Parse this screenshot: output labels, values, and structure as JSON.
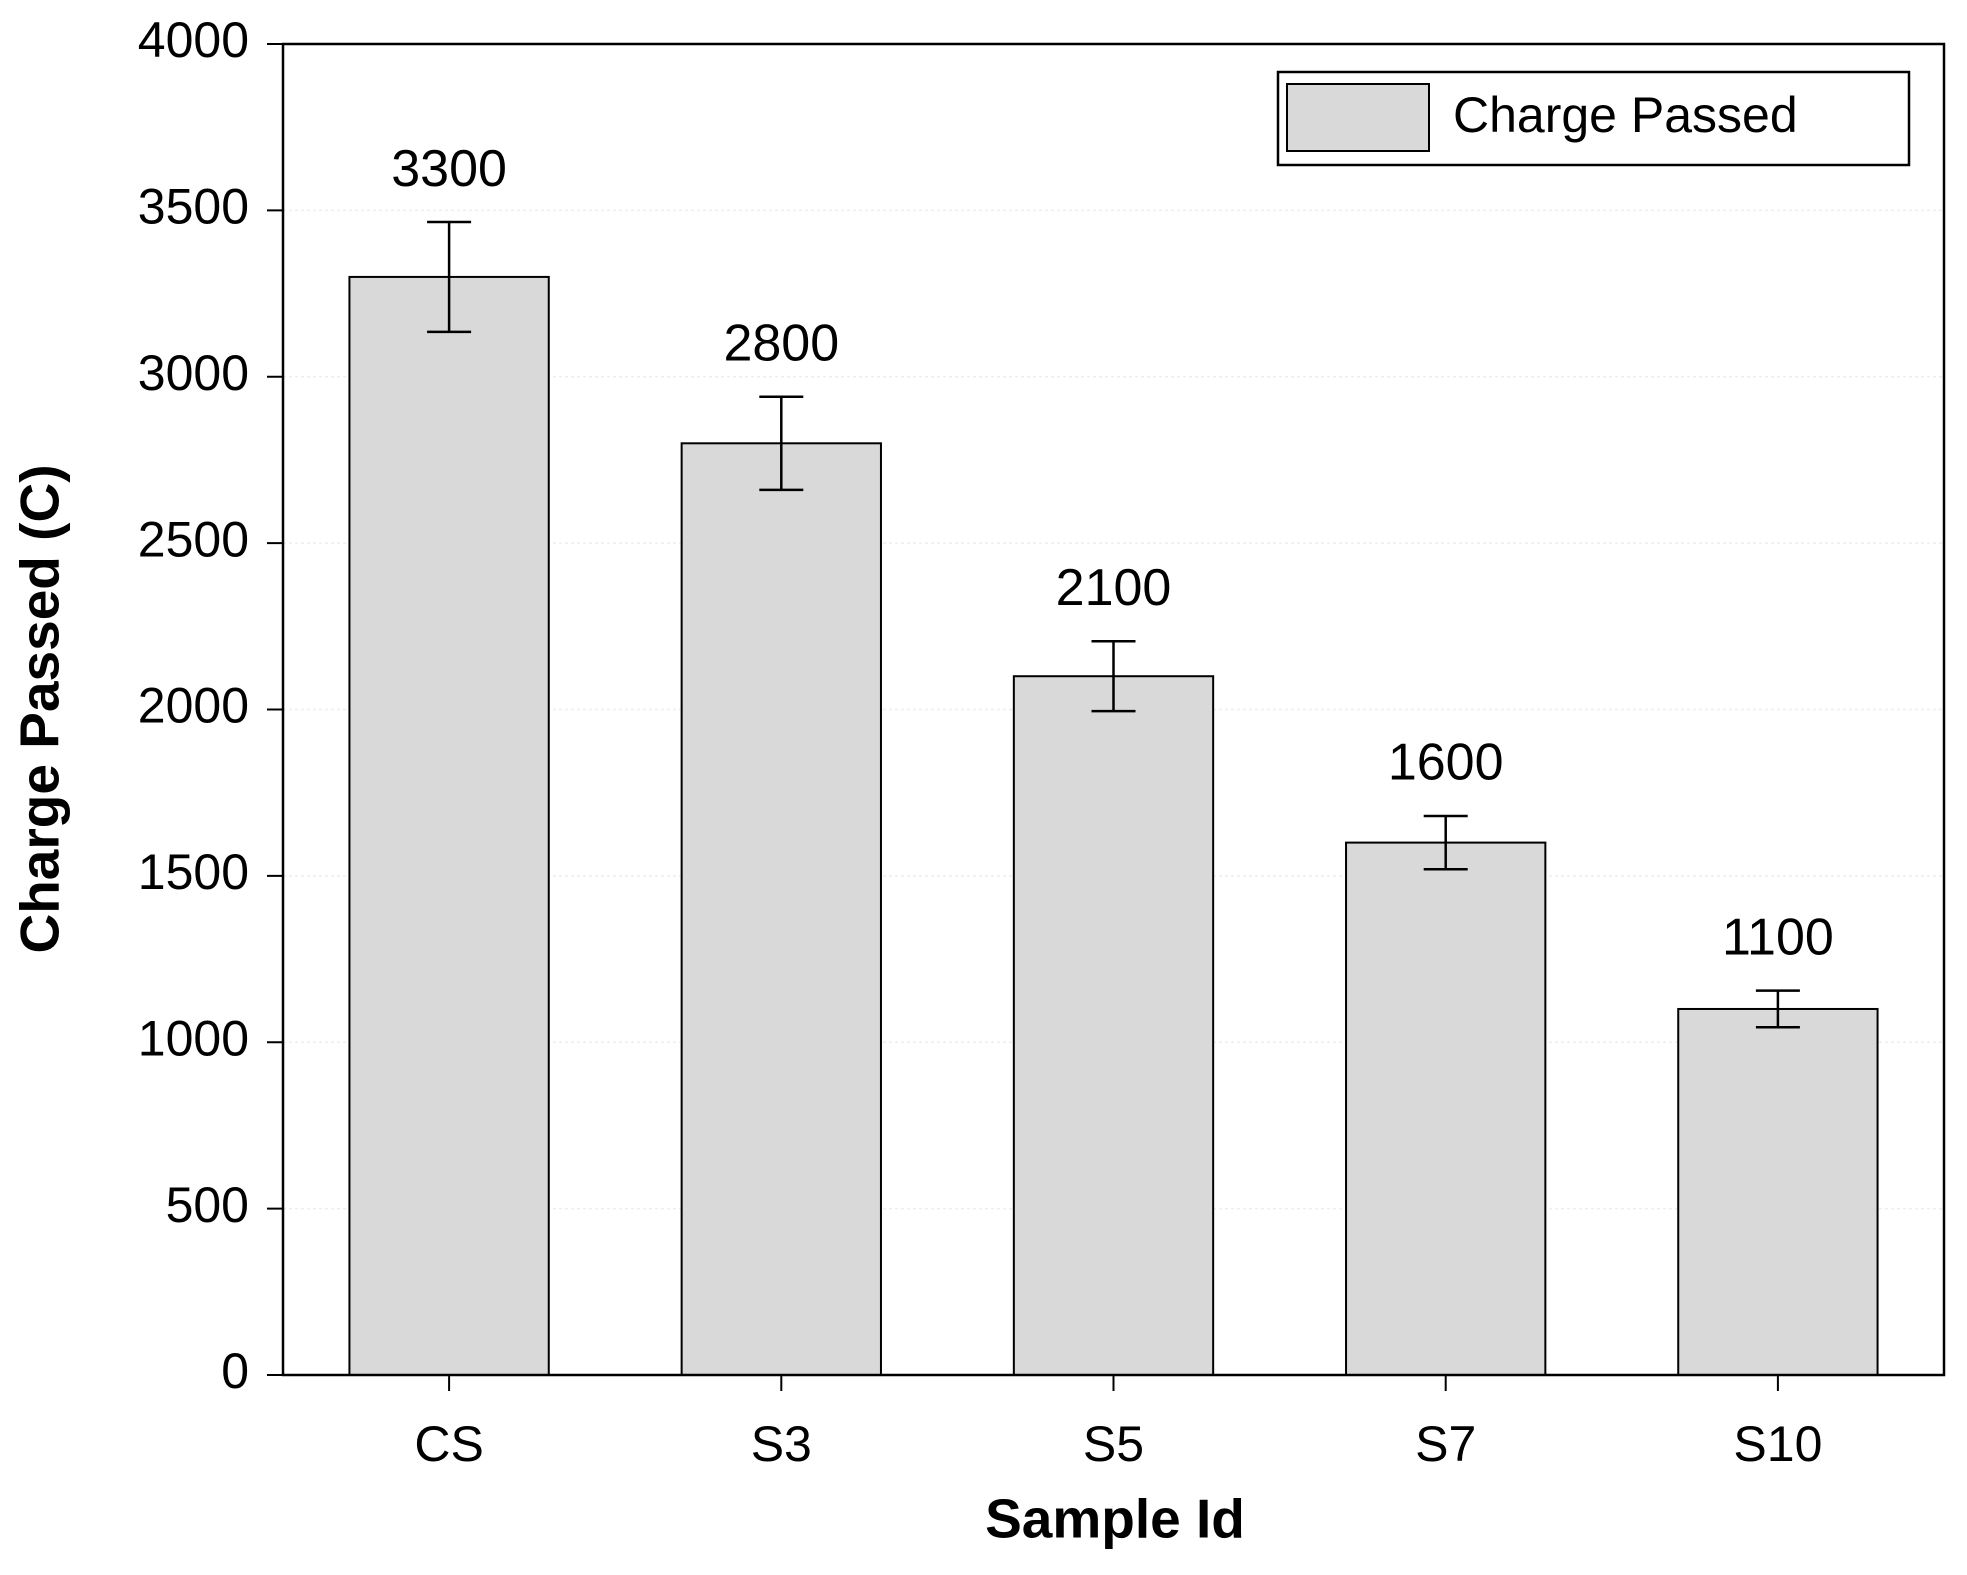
{
  "chart_data": {
    "type": "bar",
    "xlabel": "Sample Id",
    "ylabel": "Charge Passed (C)",
    "categories": [
      "CS",
      "S3",
      "S5",
      "S7",
      "S10"
    ],
    "series": [
      {
        "name": "Charge Passed",
        "color": "#d9d9d9",
        "values": [
          3300,
          2800,
          2100,
          1600,
          1100
        ],
        "errors": [
          165,
          140,
          105,
          80,
          55
        ]
      }
    ],
    "ylim": [
      0,
      4000
    ],
    "yticks": [
      0,
      500,
      1000,
      1500,
      2000,
      2500,
      3000,
      3500,
      4000
    ],
    "grid": true,
    "legend": "upper right"
  }
}
